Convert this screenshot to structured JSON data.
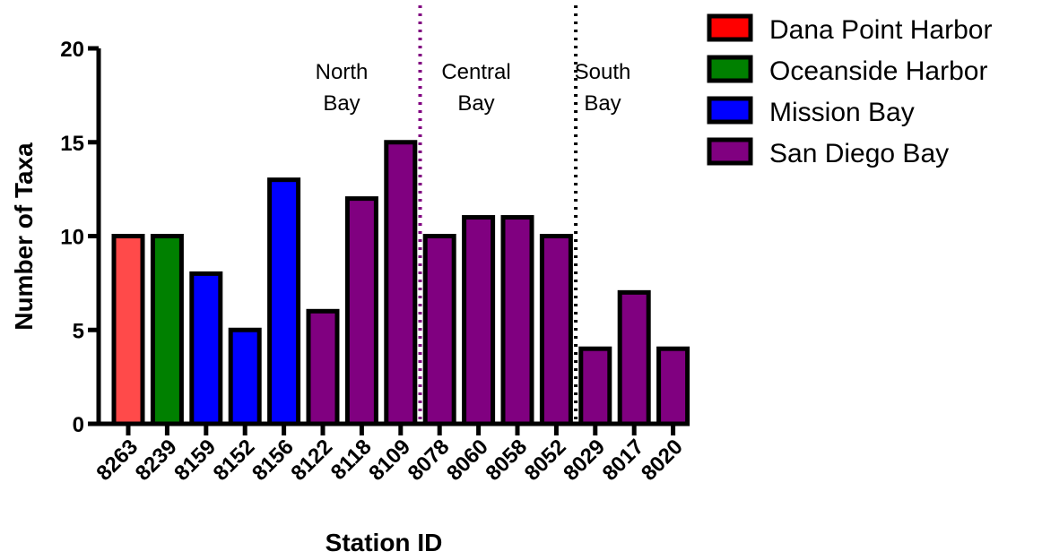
{
  "chart_data": {
    "type": "bar",
    "xlabel": "Station ID",
    "ylabel": "Number of Taxa",
    "ylim": [
      0,
      20
    ],
    "yticks": [
      "0",
      "5",
      "10",
      "15",
      "20"
    ],
    "categories": [
      "8263",
      "8239",
      "8159",
      "8152",
      "8156",
      "8122",
      "8118",
      "8109",
      "8078",
      "8060",
      "8058",
      "8052",
      "8029",
      "8017",
      "8020"
    ],
    "values": [
      10,
      10,
      8,
      5,
      13,
      6,
      12,
      15,
      10,
      11,
      11,
      10,
      4,
      7,
      4
    ],
    "groups": [
      "Dana Point Harbor",
      "Oceanside Harbor",
      "Mission Bay",
      "Mission Bay",
      "Mission Bay",
      "San Diego Bay",
      "San Diego Bay",
      "San Diego Bay",
      "San Diego Bay",
      "San Diego Bay",
      "San Diego Bay",
      "San Diego Bay",
      "San Diego Bay",
      "San Diego Bay",
      "San Diego Bay"
    ],
    "legend": [
      {
        "name": "Dana Point Harbor",
        "color": "#ff0000"
      },
      {
        "name": "Oceanside Harbor",
        "color": "#008000"
      },
      {
        "name": "Mission Bay",
        "color": "#0000ff"
      },
      {
        "name": "San Diego Bay",
        "color": "#800080"
      }
    ],
    "bar_colors": {
      "Dana Point Harbor": "#ff4a4a",
      "Oceanside Harbor": "#008000",
      "Mission Bay": "#0000ff",
      "San Diego Bay": "#800080"
    },
    "legend_placement": "right",
    "grid": false,
    "regions": [
      {
        "line1": "North",
        "line2": "Bay"
      },
      {
        "line1": "Central",
        "line2": "Bay"
      },
      {
        "line1": "South",
        "line2": "Bay"
      }
    ],
    "dividers": [
      {
        "after_category": "8109",
        "color": "#800080",
        "style": "dotted"
      },
      {
        "after_category": "8052",
        "color": "#000000",
        "style": "dotted"
      }
    ]
  }
}
